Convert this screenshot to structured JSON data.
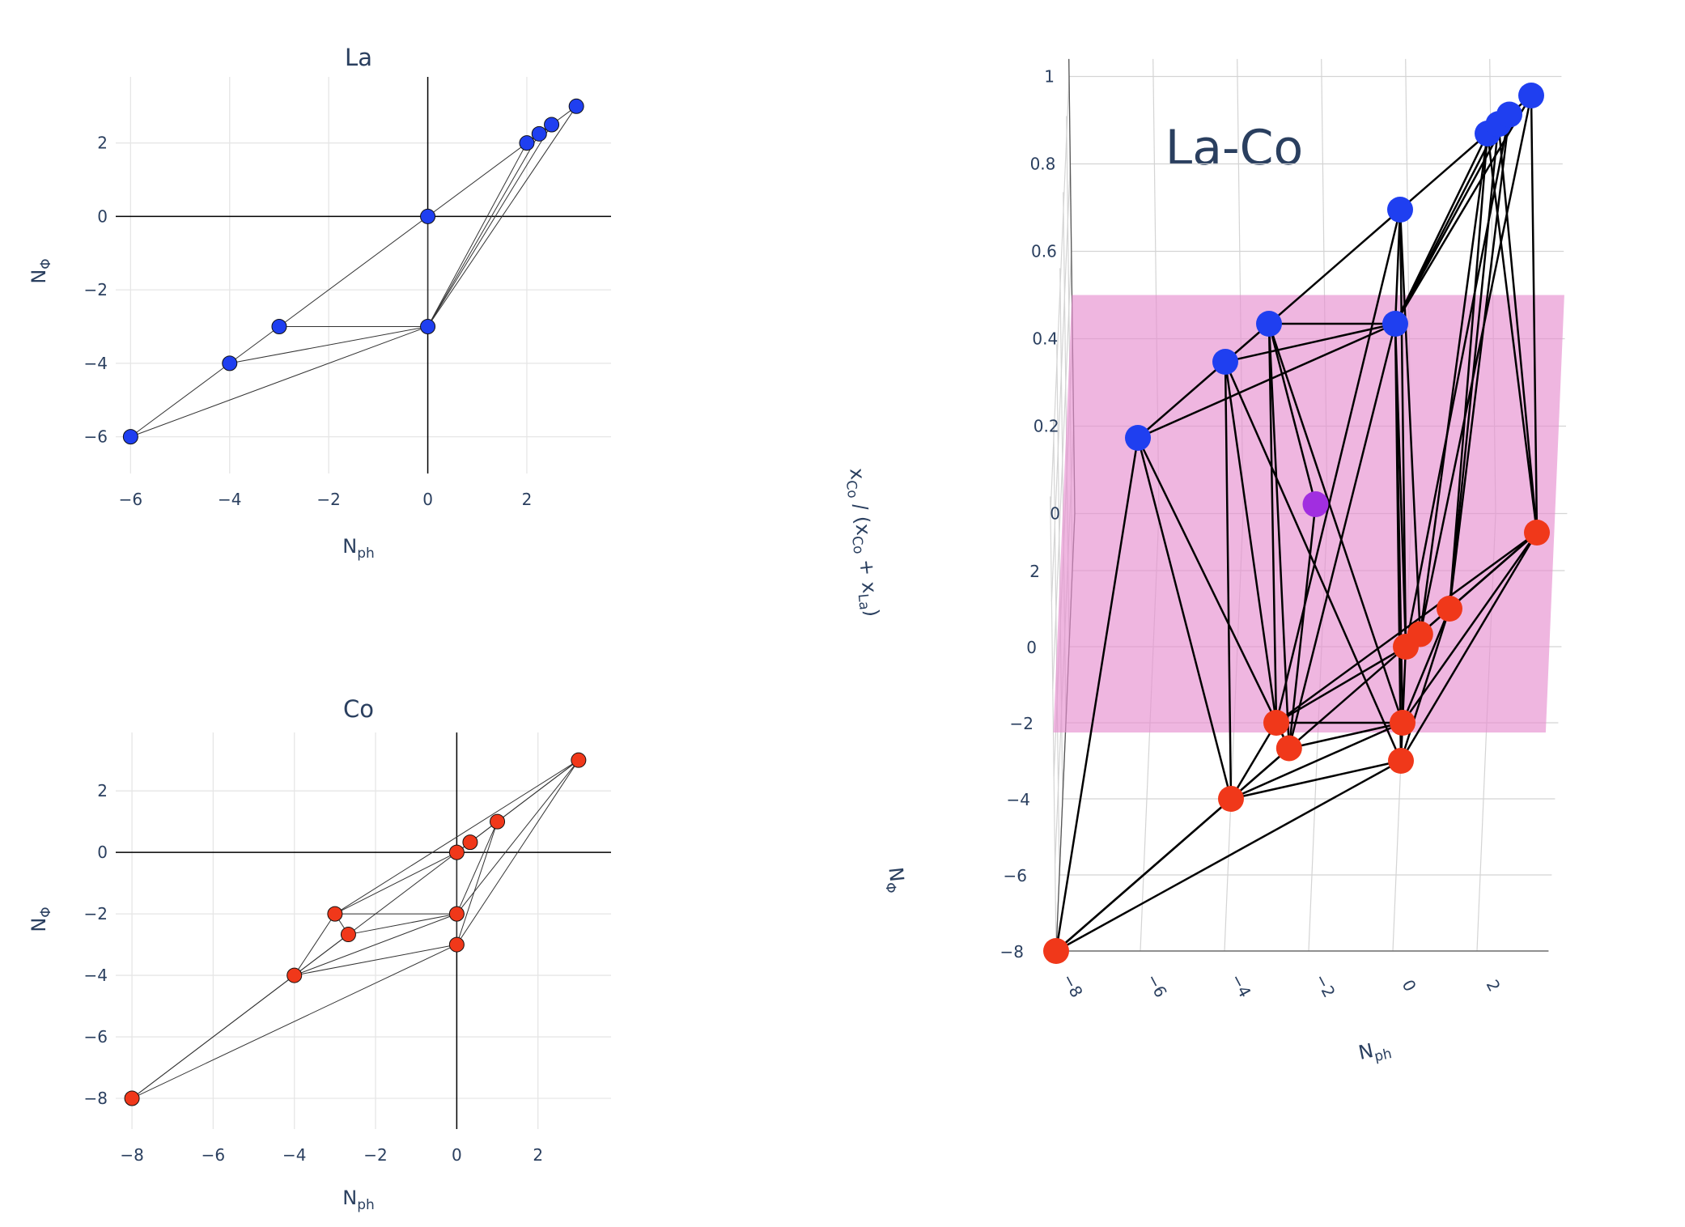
{
  "figure_title": "La-Co",
  "colors": {
    "la": "#1f3ff0",
    "co": "#f0381a",
    "mid": "#a12ee0",
    "plane": "#e78fd0"
  },
  "chart_data": [
    {
      "type": "scatter",
      "panel": "la",
      "title": "La",
      "xlabel": "N",
      "xlabel_sub": "ph",
      "ylabel": "N",
      "ylabel_sub": "Φ",
      "xlim": [
        -6.3,
        3.7
      ],
      "ylim": [
        -7,
        3.8
      ],
      "xticks": [
        -6,
        -4,
        -2,
        0,
        2
      ],
      "yticks": [
        -6,
        -4,
        -2,
        0,
        2
      ],
      "tick_labels_x": [
        "−6",
        "−4",
        "−2",
        "0",
        "2"
      ],
      "tick_labels_y": [
        "−6",
        "−4",
        "−2",
        "0",
        "2"
      ],
      "points": [
        [
          -6,
          -6
        ],
        [
          -4,
          -4
        ],
        [
          -3,
          -3
        ],
        [
          0,
          -3
        ],
        [
          0,
          0
        ],
        [
          2,
          2
        ],
        [
          2.25,
          2.25
        ],
        [
          2.5,
          2.5
        ],
        [
          3,
          3
        ]
      ],
      "edges": [
        [
          0,
          1
        ],
        [
          1,
          2
        ],
        [
          2,
          4
        ],
        [
          4,
          5
        ],
        [
          5,
          6
        ],
        [
          6,
          7
        ],
        [
          7,
          8
        ],
        [
          0,
          3
        ],
        [
          1,
          3
        ],
        [
          2,
          3
        ],
        [
          3,
          5
        ],
        [
          3,
          6
        ],
        [
          3,
          7
        ],
        [
          3,
          8
        ],
        [
          3,
          4
        ]
      ]
    },
    {
      "type": "scatter",
      "panel": "co",
      "title": "Co",
      "xlabel": "N",
      "xlabel_sub": "ph",
      "ylabel": "N",
      "ylabel_sub": "Φ",
      "xlim": [
        -8.4,
        3.8
      ],
      "ylim": [
        -9,
        3.9
      ],
      "xticks": [
        -8,
        -6,
        -4,
        -2,
        0,
        2
      ],
      "yticks": [
        -8,
        -6,
        -4,
        -2,
        0,
        2
      ],
      "tick_labels_x": [
        "−8",
        "−6",
        "−4",
        "−2",
        "0",
        "2"
      ],
      "tick_labels_y": [
        "−8",
        "−6",
        "−4",
        "−2",
        "0",
        "2"
      ],
      "points": [
        [
          -8,
          -8
        ],
        [
          -4,
          -4
        ],
        [
          -3,
          -2
        ],
        [
          -2.67,
          -2.67
        ],
        [
          0,
          -3
        ],
        [
          0,
          -2
        ],
        [
          0,
          0
        ],
        [
          0.33,
          0.33
        ],
        [
          1,
          1
        ],
        [
          3,
          3
        ]
      ],
      "edges": [
        [
          0,
          1
        ],
        [
          1,
          2
        ],
        [
          2,
          6
        ],
        [
          6,
          7
        ],
        [
          7,
          8
        ],
        [
          8,
          9
        ],
        [
          0,
          4
        ],
        [
          4,
          9
        ],
        [
          0,
          9
        ],
        [
          1,
          4
        ],
        [
          1,
          5
        ],
        [
          1,
          3
        ],
        [
          2,
          3
        ],
        [
          2,
          5
        ],
        [
          3,
          5
        ],
        [
          4,
          5
        ],
        [
          5,
          6
        ],
        [
          5,
          8
        ],
        [
          4,
          8
        ],
        [
          2,
          9
        ],
        [
          5,
          9
        ]
      ]
    },
    {
      "type": "scatter3d",
      "panel": "laco",
      "title": "La-Co",
      "zlabel": "x",
      "zlabel_parts": [
        "x",
        "Co",
        " / (x",
        "Co",
        " + x",
        "La",
        ")"
      ],
      "ylabel": "N",
      "ylabel_sub": "Φ",
      "xlabel": "N",
      "xlabel_sub": "ph",
      "zticks": [
        0,
        0.2,
        0.4,
        0.6,
        0.8,
        1
      ],
      "ztick_labels": [
        "0",
        "0.2",
        "0.4",
        "0.6",
        "0.8",
        "1"
      ],
      "yticks": [
        -8,
        -6,
        -4,
        -2,
        0,
        2
      ],
      "ytick_labels": [
        "−8",
        "−6",
        "−4",
        "−2",
        "0",
        "2"
      ],
      "xticks": [
        -8,
        -6,
        -4,
        -2,
        0,
        2
      ],
      "xtick_labels": [
        "−8",
        "−6",
        "−4",
        "−2",
        "0",
        "2"
      ],
      "plane_z": 0.5,
      "la_points": [
        [
          -6,
          -6,
          1
        ],
        [
          -4,
          -4,
          1
        ],
        [
          -3,
          -3,
          1
        ],
        [
          0,
          -3,
          1
        ],
        [
          0,
          0,
          1
        ],
        [
          2,
          2,
          1
        ],
        [
          2.25,
          2.25,
          1
        ],
        [
          2.5,
          2.5,
          1
        ],
        [
          3,
          3,
          1
        ]
      ],
      "co_points": [
        [
          -8,
          -8,
          0
        ],
        [
          -4,
          -4,
          0
        ],
        [
          -3,
          -2,
          0
        ],
        [
          -2.67,
          -2.67,
          0
        ],
        [
          0,
          -3,
          0
        ],
        [
          0,
          -2,
          0
        ],
        [
          0,
          0,
          0
        ],
        [
          0.33,
          0.33,
          0
        ],
        [
          1,
          1,
          0
        ],
        [
          3,
          3,
          0
        ]
      ],
      "mid_points": [
        [
          -2,
          -2,
          0.5
        ]
      ]
    }
  ]
}
